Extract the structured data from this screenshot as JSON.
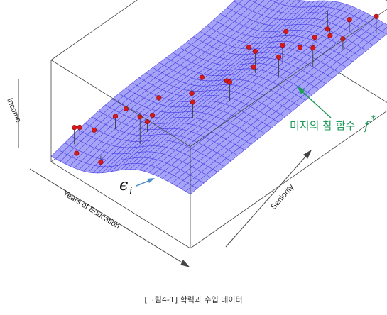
{
  "caption": "[그림4-1] 학력과 수입 데이터",
  "colors": {
    "surface_fill": "#9e9cf6",
    "surface_line": "#4a3fe6",
    "point": "#d7191c",
    "residual": "#333333",
    "box": "#444444",
    "annotation_green": "#1f9a5a",
    "annotation_blue": "#4a8cc9"
  },
  "annotations": {
    "true_function_label": "미지의 참 함수",
    "true_function_symbol": "f",
    "true_function_superscript": "*",
    "error_symbol": "ϵ",
    "error_subscript": "i"
  },
  "chart_data": {
    "type": "scatter",
    "subtype": "3d-surface-with-points",
    "title": "",
    "xlabel": "Years of Education",
    "ylabel": "Seniority",
    "zlabel": "Income",
    "xlim": [
      0,
      1
    ],
    "ylim": [
      0,
      1
    ],
    "zlim": [
      0,
      1
    ],
    "grid": false,
    "legend": "none",
    "surface": {
      "function": "sigmoid along education, linear rise along seniority",
      "grid_resolution": [
        30,
        30
      ]
    },
    "points": [
      {
        "x": 0.03,
        "y": 0.12,
        "z": 0.22
      },
      {
        "x": 0.05,
        "y": 0.08,
        "z": 0.3
      },
      {
        "x": 0.09,
        "y": 0.15,
        "z": 0.2
      },
      {
        "x": 0.11,
        "y": 0.05,
        "z": 0.12
      },
      {
        "x": 0.13,
        "y": 0.28,
        "z": 0.27
      },
      {
        "x": 0.17,
        "y": 0.2,
        "z": 0.35
      },
      {
        "x": 0.22,
        "y": 0.38,
        "z": 0.32
      },
      {
        "x": 0.24,
        "y": 0.08,
        "z": 0.1
      },
      {
        "x": 0.29,
        "y": 0.3,
        "z": 0.32
      },
      {
        "x": 0.31,
        "y": 0.48,
        "z": 0.3
      },
      {
        "x": 0.37,
        "y": 0.22,
        "z": 0.45
      },
      {
        "x": 0.4,
        "y": 0.7,
        "z": 0.55
      },
      {
        "x": 0.42,
        "y": 0.15,
        "z": 0.66
      },
      {
        "x": 0.46,
        "y": 0.55,
        "z": 0.47
      },
      {
        "x": 0.5,
        "y": 0.4,
        "z": 0.78
      },
      {
        "x": 0.52,
        "y": 0.8,
        "z": 0.68
      },
      {
        "x": 0.55,
        "y": 0.62,
        "z": 0.6
      },
      {
        "x": 0.58,
        "y": 0.3,
        "z": 0.74
      },
      {
        "x": 0.6,
        "y": 0.95,
        "z": 0.55
      },
      {
        "x": 0.62,
        "y": 0.58,
        "z": 0.9
      },
      {
        "x": 0.65,
        "y": 0.78,
        "z": 0.66
      },
      {
        "x": 0.67,
        "y": 0.42,
        "z": 0.86
      },
      {
        "x": 0.7,
        "y": 0.66,
        "z": 0.92
      },
      {
        "x": 0.72,
        "y": 0.88,
        "z": 0.7
      },
      {
        "x": 0.76,
        "y": 0.6,
        "z": 0.94
      },
      {
        "x": 0.8,
        "y": 0.75,
        "z": 0.96
      },
      {
        "x": 0.83,
        "y": 0.9,
        "z": 0.95
      },
      {
        "x": 0.86,
        "y": 0.7,
        "z": 0.98
      },
      {
        "x": 0.9,
        "y": 0.82,
        "z": 0.93
      },
      {
        "x": 0.95,
        "y": 0.95,
        "z": 1.02
      }
    ]
  }
}
